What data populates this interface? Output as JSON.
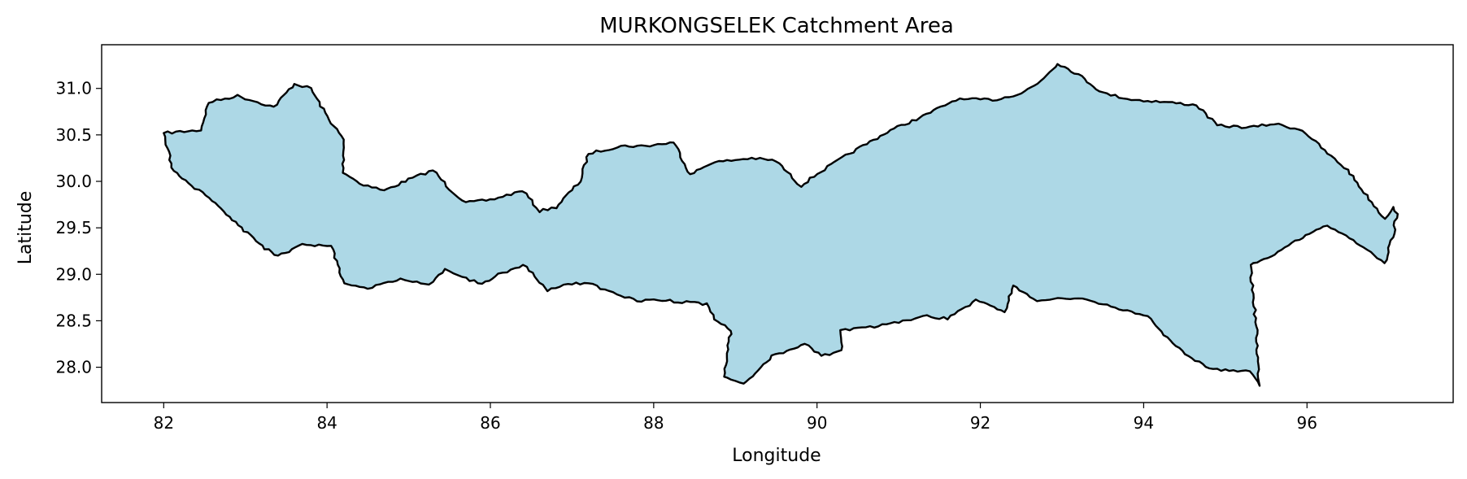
{
  "chart_data": {
    "type": "map",
    "title": "MURKONGSELEK Catchment Area",
    "xlabel": "Longitude",
    "ylabel": "Latitude",
    "xlim": [
      81.24,
      97.79
    ],
    "ylim": [
      27.62,
      31.47
    ],
    "xticks": [
      82,
      84,
      86,
      88,
      90,
      92,
      94,
      96
    ],
    "yticks": [
      28.0,
      28.5,
      29.0,
      29.5,
      30.0,
      30.5,
      31.0
    ],
    "xtick_labels": [
      "82",
      "84",
      "86",
      "88",
      "90",
      "92",
      "94",
      "96"
    ],
    "ytick_labels": [
      "28.0",
      "28.5",
      "29.0",
      "29.5",
      "30.0",
      "30.5",
      "31.0"
    ],
    "fill_color": "#add8e6",
    "edge_color": "#000000",
    "boundary": [
      [
        82.0,
        30.52
      ],
      [
        82.45,
        30.55
      ],
      [
        82.55,
        30.85
      ],
      [
        82.9,
        30.92
      ],
      [
        83.35,
        30.8
      ],
      [
        83.6,
        31.05
      ],
      [
        83.8,
        31.0
      ],
      [
        84.0,
        30.7
      ],
      [
        84.2,
        30.45
      ],
      [
        84.2,
        30.1
      ],
      [
        84.4,
        29.98
      ],
      [
        84.7,
        29.9
      ],
      [
        85.0,
        30.02
      ],
      [
        85.3,
        30.12
      ],
      [
        85.5,
        29.92
      ],
      [
        85.7,
        29.77
      ],
      [
        86.0,
        29.8
      ],
      [
        86.4,
        29.9
      ],
      [
        86.6,
        29.68
      ],
      [
        86.8,
        29.72
      ],
      [
        87.1,
        30.0
      ],
      [
        87.2,
        30.3
      ],
      [
        87.6,
        30.38
      ],
      [
        87.9,
        30.38
      ],
      [
        88.25,
        30.42
      ],
      [
        88.45,
        30.07
      ],
      [
        88.7,
        30.2
      ],
      [
        89.2,
        30.25
      ],
      [
        89.5,
        30.22
      ],
      [
        89.8,
        29.95
      ],
      [
        90.0,
        30.08
      ],
      [
        90.4,
        30.3
      ],
      [
        90.9,
        30.55
      ],
      [
        91.3,
        30.7
      ],
      [
        91.7,
        30.88
      ],
      [
        92.2,
        30.88
      ],
      [
        92.5,
        30.95
      ],
      [
        92.7,
        31.05
      ],
      [
        92.95,
        31.27
      ],
      [
        93.2,
        31.15
      ],
      [
        93.5,
        30.95
      ],
      [
        93.85,
        30.88
      ],
      [
        94.3,
        30.85
      ],
      [
        94.65,
        30.82
      ],
      [
        94.9,
        30.6
      ],
      [
        95.3,
        30.58
      ],
      [
        95.6,
        30.62
      ],
      [
        95.95,
        30.55
      ],
      [
        96.25,
        30.3
      ],
      [
        96.5,
        30.12
      ],
      [
        96.7,
        29.88
      ],
      [
        96.95,
        29.6
      ],
      [
        97.05,
        29.72
      ],
      [
        97.1,
        29.65
      ],
      [
        97.05,
        29.4
      ],
      [
        96.95,
        29.12
      ],
      [
        96.7,
        29.3
      ],
      [
        96.25,
        29.52
      ],
      [
        95.9,
        29.38
      ],
      [
        95.6,
        29.22
      ],
      [
        95.3,
        29.1
      ],
      [
        95.35,
        28.7
      ],
      [
        95.38,
        28.4
      ],
      [
        95.4,
        28.02
      ],
      [
        95.42,
        27.8
      ],
      [
        95.3,
        27.95
      ],
      [
        94.8,
        27.98
      ],
      [
        94.35,
        28.25
      ],
      [
        94.05,
        28.55
      ],
      [
        93.6,
        28.65
      ],
      [
        93.2,
        28.75
      ],
      [
        92.7,
        28.72
      ],
      [
        92.4,
        28.88
      ],
      [
        92.3,
        28.6
      ],
      [
        91.95,
        28.72
      ],
      [
        91.6,
        28.52
      ],
      [
        91.35,
        28.55
      ],
      [
        90.8,
        28.45
      ],
      [
        90.3,
        28.4
      ],
      [
        90.3,
        28.18
      ],
      [
        90.05,
        28.12
      ],
      [
        89.85,
        28.25
      ],
      [
        89.45,
        28.12
      ],
      [
        89.1,
        27.82
      ],
      [
        88.85,
        27.9
      ],
      [
        88.95,
        28.4
      ],
      [
        88.75,
        28.52
      ],
      [
        88.65,
        28.68
      ],
      [
        88.1,
        28.72
      ],
      [
        87.8,
        28.72
      ],
      [
        87.5,
        28.8
      ],
      [
        87.2,
        28.9
      ],
      [
        86.95,
        28.9
      ],
      [
        86.7,
        28.82
      ],
      [
        86.55,
        28.98
      ],
      [
        86.4,
        29.1
      ],
      [
        86.1,
        29.0
      ],
      [
        85.9,
        28.9
      ],
      [
        85.6,
        28.98
      ],
      [
        85.45,
        29.05
      ],
      [
        85.25,
        28.9
      ],
      [
        84.9,
        28.95
      ],
      [
        84.5,
        28.85
      ],
      [
        84.2,
        28.9
      ],
      [
        84.05,
        29.3
      ],
      [
        83.7,
        29.32
      ],
      [
        83.4,
        29.2
      ],
      [
        83.2,
        29.3
      ],
      [
        82.95,
        29.5
      ],
      [
        82.6,
        29.8
      ],
      [
        82.3,
        29.98
      ],
      [
        82.1,
        30.15
      ]
    ]
  }
}
